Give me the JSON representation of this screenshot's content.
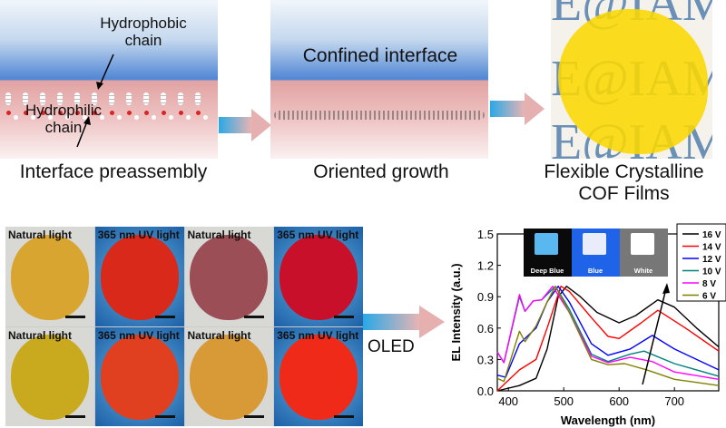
{
  "top": {
    "panel1": {
      "label_top": "Hydrophobic chain",
      "label_bottom": "Hydrophilic chain",
      "caption": "Interface preassembly"
    },
    "panel2": {
      "label": "Confined interface",
      "caption": "Oriented growth"
    },
    "panel3": {
      "watermark": "E@IAM",
      "caption": "Flexible Crystalline COF Films"
    }
  },
  "photos": {
    "cells": [
      {
        "label": "Natural light",
        "film": "#d8a531"
      },
      {
        "label": "365 nm UV light",
        "film": "#d8291b"
      },
      {
        "label": "Natural light",
        "film": "#9c4e56"
      },
      {
        "label": "365 nm UV light",
        "film": "#c8102a"
      },
      {
        "label": "Natural light",
        "film": "#c9aa1e"
      },
      {
        "label": "365 nm UV light",
        "film": "#e0401f"
      },
      {
        "label": "Natural light",
        "film": "#d79a37"
      },
      {
        "label": "365 nm UV light",
        "film": "#ef2a18"
      }
    ]
  },
  "oled_label": "OLED",
  "inset": {
    "labels": [
      "Deep Blue",
      "Blue",
      "White"
    ]
  },
  "chart_data": {
    "type": "line",
    "xlabel": "Wavelength (nm)",
    "ylabel": "EL Intensity (a.u.)",
    "xlim": [
      380,
      780
    ],
    "ylim": [
      0,
      1.5
    ],
    "xticks": [
      400,
      500,
      600,
      700
    ],
    "yticks": [
      0.0,
      0.3,
      0.6,
      0.9,
      1.2,
      1.5
    ],
    "legend_position": "top-right",
    "series": [
      {
        "name": "16 V",
        "color": "#000000",
        "x": [
          380,
          420,
          450,
          470,
          490,
          505,
          530,
          560,
          600,
          630,
          670,
          700,
          740,
          780
        ],
        "y": [
          0,
          0.05,
          0.12,
          0.4,
          0.9,
          1.0,
          0.9,
          0.75,
          0.65,
          0.72,
          0.87,
          0.8,
          0.6,
          0.42
        ]
      },
      {
        "name": "14 V",
        "color": "#ff0000",
        "x": [
          380,
          420,
          450,
          470,
          495,
          510,
          550,
          580,
          600,
          640,
          670,
          720,
          780
        ],
        "y": [
          0,
          0.2,
          0.3,
          0.6,
          1.0,
          0.95,
          0.7,
          0.52,
          0.5,
          0.65,
          0.77,
          0.6,
          0.38
        ]
      },
      {
        "name": "12 V",
        "color": "#0000ff",
        "x": [
          380,
          395,
          420,
          450,
          470,
          490,
          510,
          550,
          580,
          620,
          660,
          700,
          780
        ],
        "y": [
          0.15,
          0.13,
          0.45,
          0.6,
          0.85,
          1.0,
          0.85,
          0.45,
          0.34,
          0.4,
          0.53,
          0.4,
          0.2
        ]
      },
      {
        "name": "10 V",
        "color": "#008080",
        "x": [
          380,
          392,
          420,
          430,
          445,
          460,
          485,
          510,
          550,
          580,
          620,
          645,
          700,
          780
        ],
        "y": [
          0.37,
          0.27,
          0.9,
          0.76,
          0.86,
          0.87,
          1.0,
          0.78,
          0.35,
          0.28,
          0.35,
          0.38,
          0.26,
          0.14
        ]
      },
      {
        "name": "8 V",
        "color": "#ff00ff",
        "x": [
          380,
          392,
          420,
          430,
          445,
          460,
          480,
          510,
          550,
          580,
          620,
          660,
          700,
          780
        ],
        "y": [
          0.37,
          0.27,
          0.92,
          0.76,
          0.86,
          0.87,
          1.0,
          0.75,
          0.33,
          0.27,
          0.32,
          0.28,
          0.18,
          0.11
        ]
      },
      {
        "name": "6 V",
        "color": "#808000",
        "x": [
          380,
          392,
          420,
          430,
          450,
          470,
          485,
          510,
          550,
          580,
          610,
          650,
          700,
          780
        ],
        "y": [
          0.12,
          0.09,
          0.57,
          0.47,
          0.62,
          0.85,
          1.0,
          0.75,
          0.3,
          0.25,
          0.26,
          0.2,
          0.11,
          0.05
        ]
      }
    ]
  }
}
